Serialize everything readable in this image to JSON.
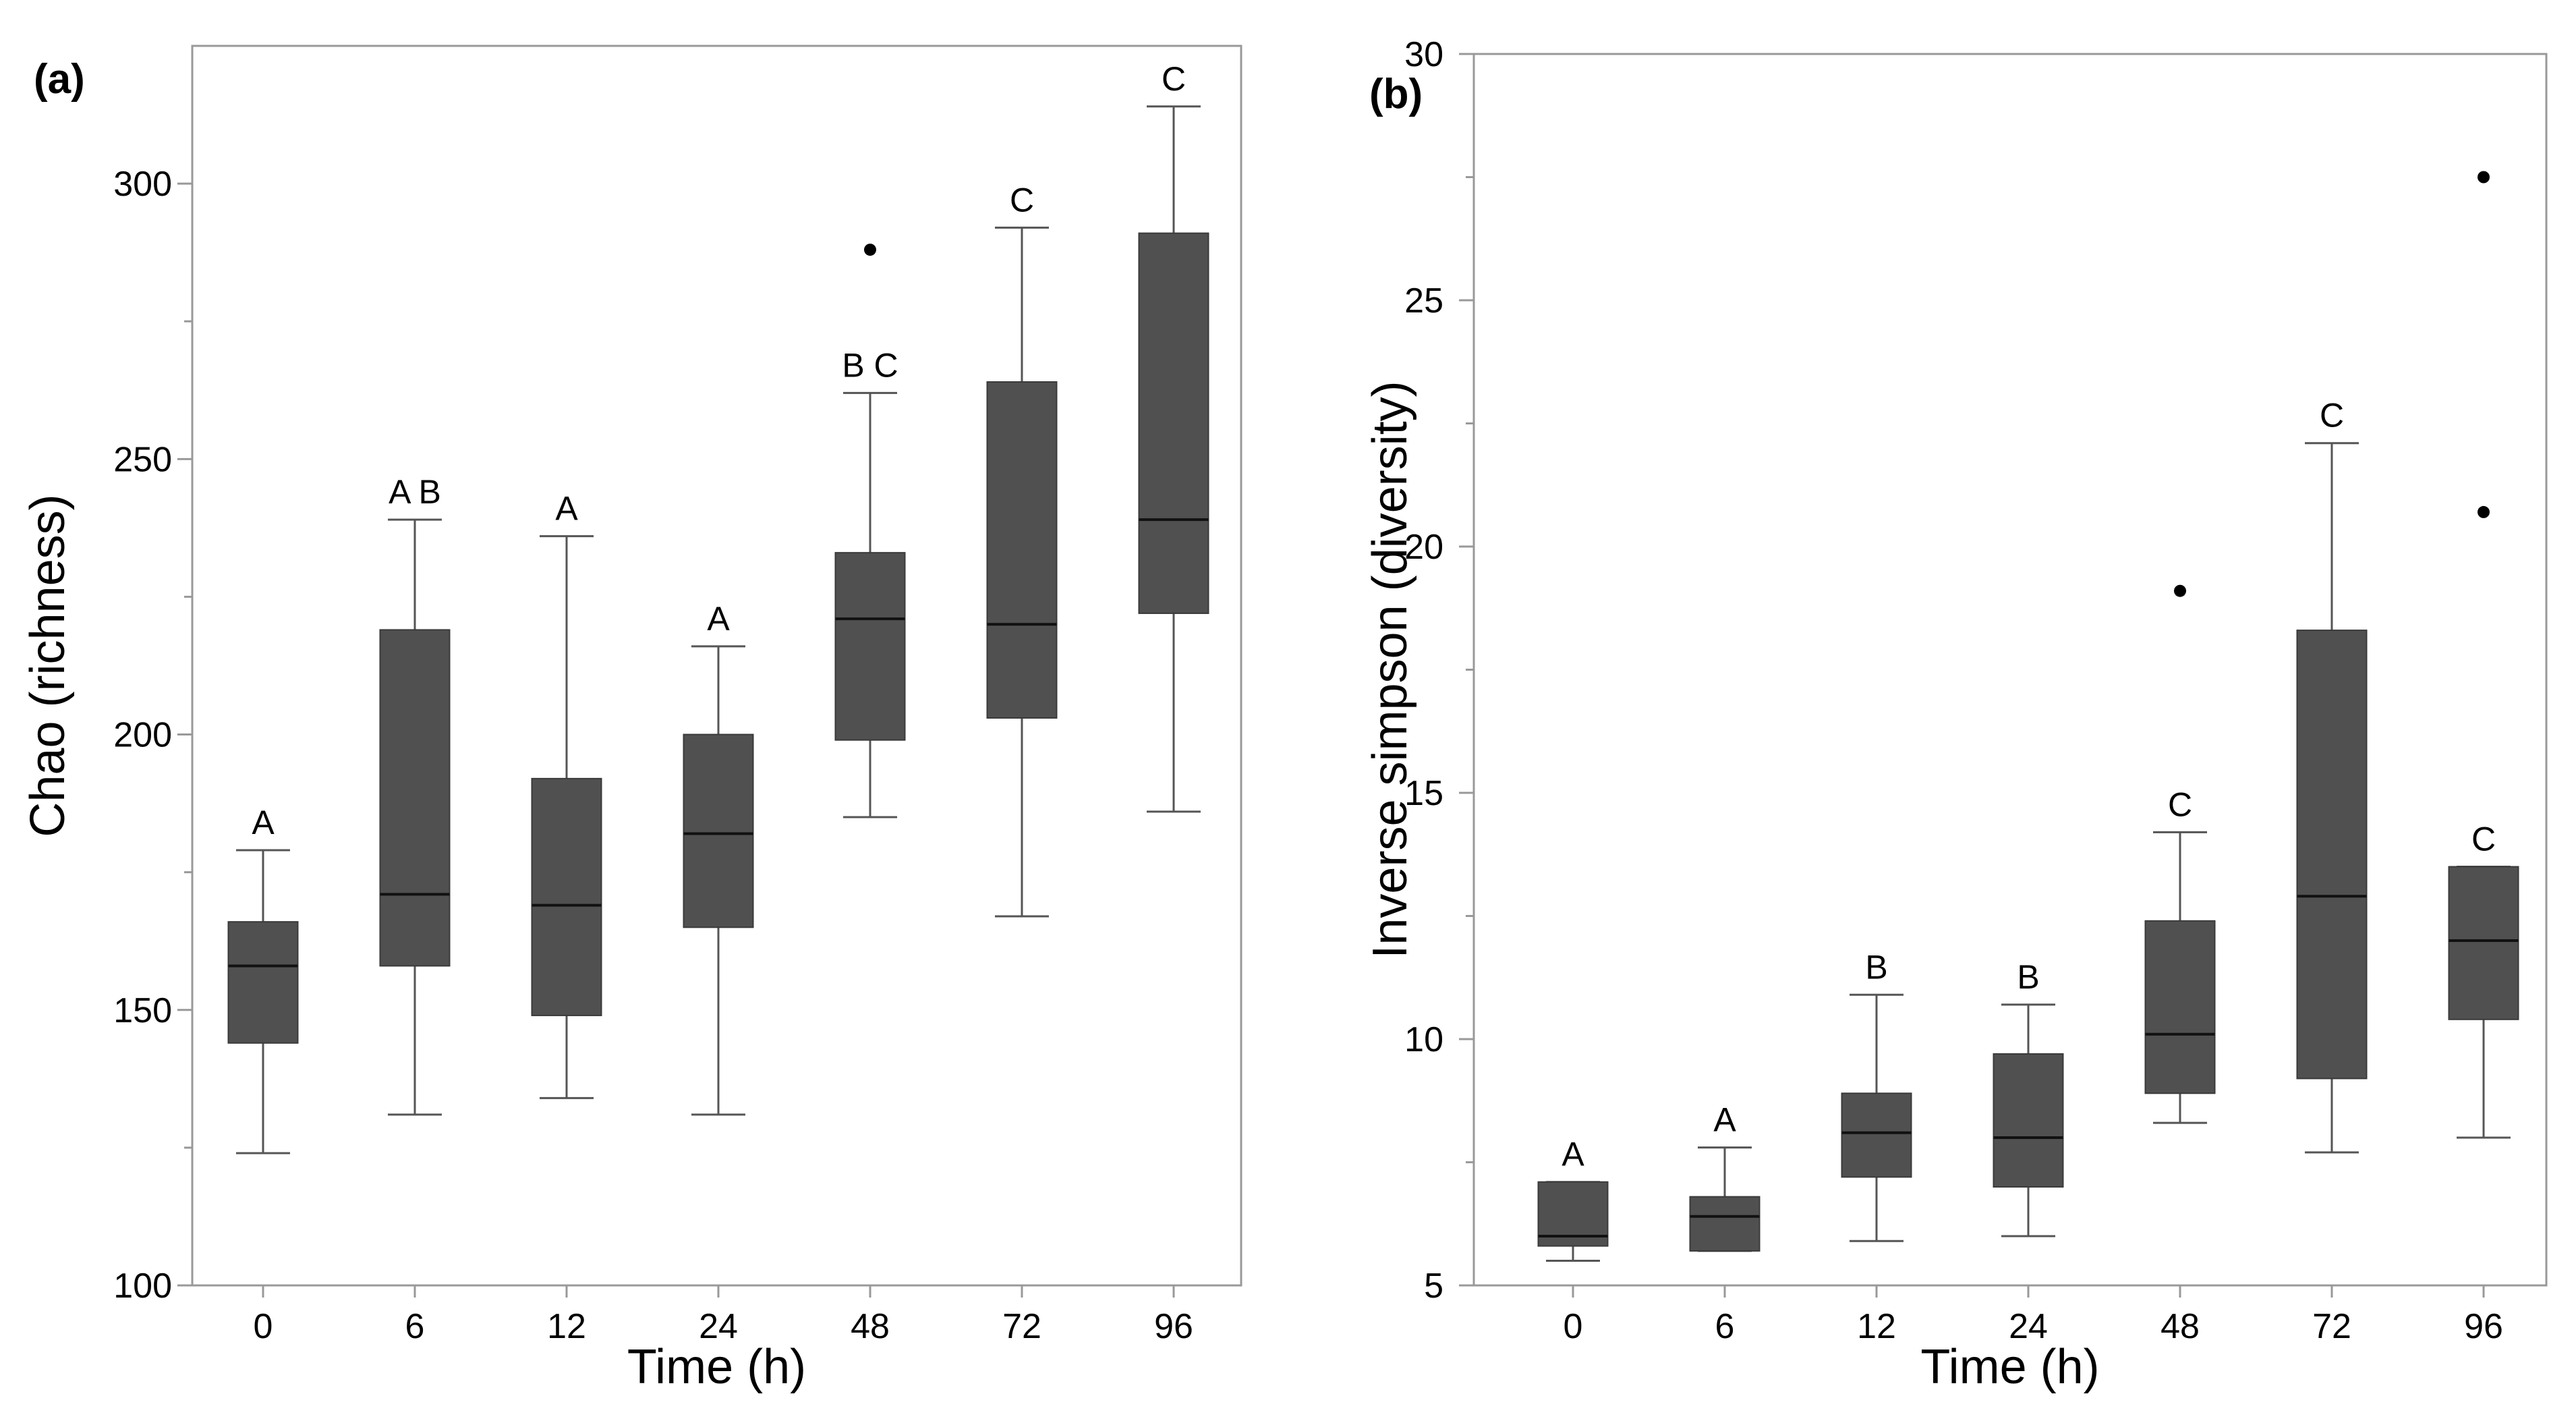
{
  "colors": {
    "box_fill": "#505050",
    "median_line": "#111111",
    "axis_frame": "#999999",
    "whisker": "#555555",
    "outlier": "#000000"
  },
  "chart_data": [
    {
      "type": "box",
      "panel_label": "(a)",
      "xlabel": "Time (h)",
      "ylabel": "Chao (richness)",
      "ylim": [
        100,
        325
      ],
      "yticks": [
        100,
        150,
        200,
        250,
        300
      ],
      "yticks_text": [
        "100",
        "150",
        "200",
        "250",
        "300"
      ],
      "categories": [
        "0",
        "6",
        "12",
        "24",
        "48",
        "72",
        "96"
      ],
      "boxes": [
        {
          "category": "0",
          "min": 124,
          "q1": 144,
          "median": 158,
          "q3": 166,
          "max": 179,
          "outliers": [],
          "letter": "A"
        },
        {
          "category": "6",
          "min": 131,
          "q1": 158,
          "median": 171,
          "q3": 219,
          "max": 239,
          "outliers": [],
          "letter": "A B"
        },
        {
          "category": "12",
          "min": 134,
          "q1": 149,
          "median": 169,
          "q3": 192,
          "max": 236,
          "outliers": [],
          "letter": "A"
        },
        {
          "category": "24",
          "min": 131,
          "q1": 165,
          "median": 182,
          "q3": 200,
          "max": 216,
          "outliers": [],
          "letter": "A"
        },
        {
          "category": "48",
          "min": 185,
          "q1": 199,
          "median": 221,
          "q3": 233,
          "max": 262,
          "outliers": [
            288
          ],
          "letter": "B C"
        },
        {
          "category": "72",
          "min": 167,
          "q1": 203,
          "median": 220,
          "q3": 264,
          "max": 292,
          "outliers": [],
          "letter": "C"
        },
        {
          "category": "96",
          "min": 186,
          "q1": 222,
          "median": 239,
          "q3": 291,
          "max": 314,
          "outliers": [],
          "letter": "C"
        }
      ]
    },
    {
      "type": "box",
      "panel_label": "(b)",
      "xlabel": "Time (h)",
      "ylabel": "Inverse simpson (diversity)",
      "ylim": [
        5,
        30
      ],
      "yticks": [
        5,
        10,
        15,
        20,
        25,
        30
      ],
      "yticks_text": [
        "5",
        "10",
        "15",
        "20",
        "25",
        "30"
      ],
      "categories": [
        "0",
        "6",
        "12",
        "24",
        "48",
        "72",
        "96"
      ],
      "boxes": [
        {
          "category": "0",
          "min": 5.5,
          "q1": 5.8,
          "median": 6.0,
          "q3": 7.1,
          "max": 7.1,
          "outliers": [],
          "letter": "A"
        },
        {
          "category": "6",
          "min": 5.7,
          "q1": 5.7,
          "median": 6.4,
          "q3": 6.8,
          "max": 7.8,
          "outliers": [],
          "letter": "A"
        },
        {
          "category": "12",
          "min": 5.9,
          "q1": 7.2,
          "median": 8.1,
          "q3": 8.9,
          "max": 10.9,
          "outliers": [],
          "letter": "B"
        },
        {
          "category": "24",
          "min": 6.0,
          "q1": 7.0,
          "median": 8.0,
          "q3": 9.7,
          "max": 10.7,
          "outliers": [],
          "letter": "B"
        },
        {
          "category": "48",
          "min": 8.3,
          "q1": 8.9,
          "median": 10.1,
          "q3": 12.4,
          "max": 14.2,
          "outliers": [
            19.1
          ],
          "letter": "C"
        },
        {
          "category": "72",
          "min": 7.7,
          "q1": 9.2,
          "median": 12.9,
          "q3": 18.3,
          "max": 22.1,
          "outliers": [],
          "letter": "C"
        },
        {
          "category": "96",
          "min": 8.0,
          "q1": 10.4,
          "median": 12.0,
          "q3": 13.5,
          "max": 13.5,
          "outliers": [
            20.7,
            27.5
          ],
          "letter": "C"
        }
      ]
    }
  ]
}
